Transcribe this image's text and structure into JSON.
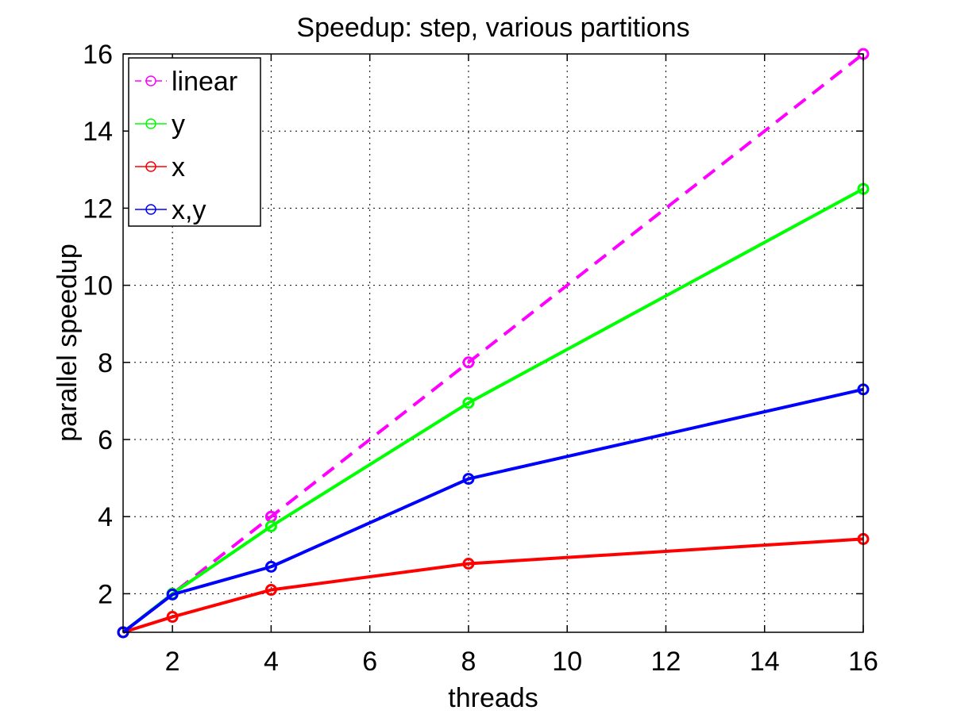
{
  "chart_data": {
    "type": "line",
    "title": "Speedup: step, various partitions",
    "xlabel": "threads",
    "ylabel": "parallel speedup",
    "xlim": [
      1,
      16
    ],
    "ylim": [
      1,
      16
    ],
    "xticks": [
      2,
      4,
      6,
      8,
      10,
      12,
      14,
      16
    ],
    "yticks": [
      2,
      4,
      6,
      8,
      10,
      12,
      14,
      16
    ],
    "grid": true,
    "legend_position": "top-left",
    "series": [
      {
        "name": "linear",
        "color": "#ff00ff",
        "dashed": true,
        "x": [
          1,
          2,
          4,
          8,
          16
        ],
        "y": [
          1,
          2,
          4,
          8,
          16
        ]
      },
      {
        "name": "y",
        "color": "#00ff00",
        "dashed": false,
        "x": [
          1,
          2,
          4,
          8,
          16
        ],
        "y": [
          1,
          2,
          3.75,
          6.95,
          12.5
        ]
      },
      {
        "name": "x",
        "color": "#ff0000",
        "dashed": false,
        "x": [
          1,
          2,
          4,
          8,
          16
        ],
        "y": [
          1,
          1.4,
          2.1,
          2.78,
          3.42
        ]
      },
      {
        "name": "x,y",
        "color": "#0000ff",
        "dashed": false,
        "x": [
          1,
          2,
          4,
          8,
          16
        ],
        "y": [
          1,
          1.98,
          2.7,
          4.98,
          7.3
        ]
      }
    ]
  }
}
